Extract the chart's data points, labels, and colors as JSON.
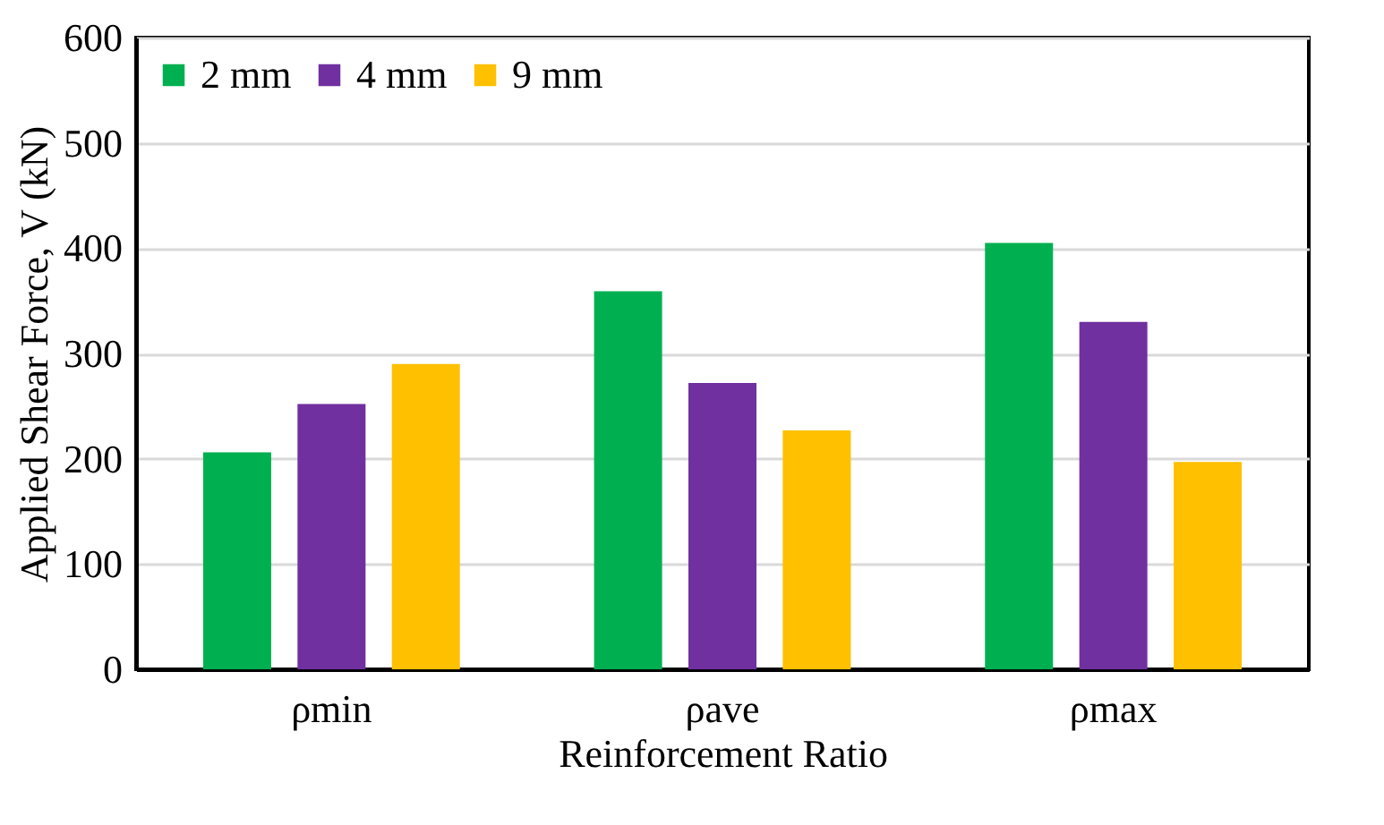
{
  "chart_data": {
    "type": "bar",
    "xlabel": "Reinforcement Ratio",
    "ylabel": "Applied Shear Force, V (kN)",
    "categories": [
      "ρmin",
      "ρave",
      "ρmax"
    ],
    "series": [
      {
        "name": "2 mm",
        "color": "#00b050",
        "values": [
          206,
          359,
          405
        ]
      },
      {
        "name": "4 mm",
        "color": "#7030a0",
        "values": [
          252,
          272,
          330
        ]
      },
      {
        "name": "9 mm",
        "color": "#ffc000",
        "values": [
          290,
          227,
          197
        ]
      }
    ],
    "ylim": [
      0,
      600
    ],
    "yticks": [
      0,
      100,
      200,
      300,
      400,
      500,
      600
    ],
    "grid": "y",
    "legend": "top left"
  }
}
